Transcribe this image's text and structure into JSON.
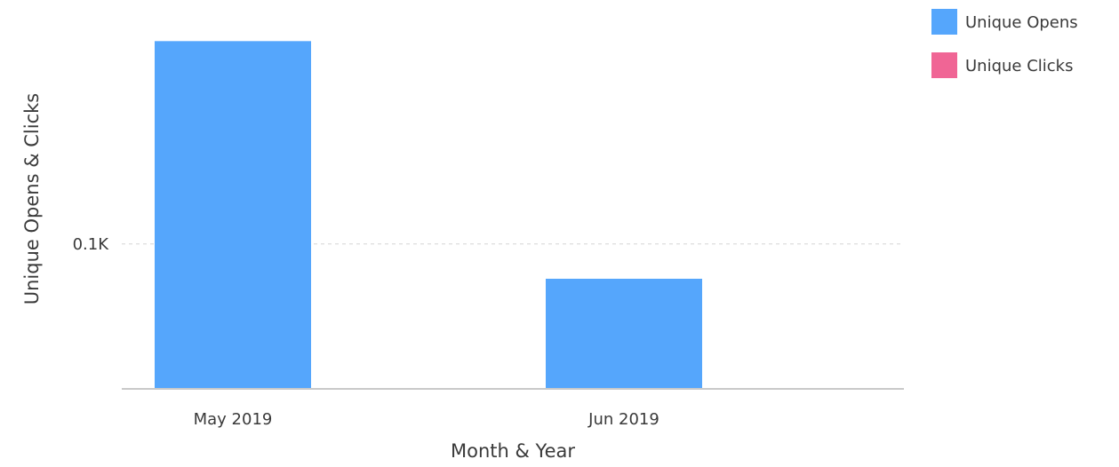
{
  "chart_data": {
    "type": "bar",
    "categories": [
      "May 2019",
      "Jun 2019"
    ],
    "series": [
      {
        "name": "Unique Opens",
        "color": "#55a6fc",
        "values": [
          240,
          76
        ]
      },
      {
        "name": "Unique Clicks",
        "color": "#f06595",
        "values": [
          0,
          0
        ]
      }
    ],
    "xlabel": "Month & Year",
    "ylabel": "Unique Opens & Clicks",
    "ylim": [
      0,
      250
    ],
    "yticks": [
      {
        "value": 100,
        "label": "0.1K"
      }
    ],
    "grid": true,
    "legend": "top-right"
  }
}
